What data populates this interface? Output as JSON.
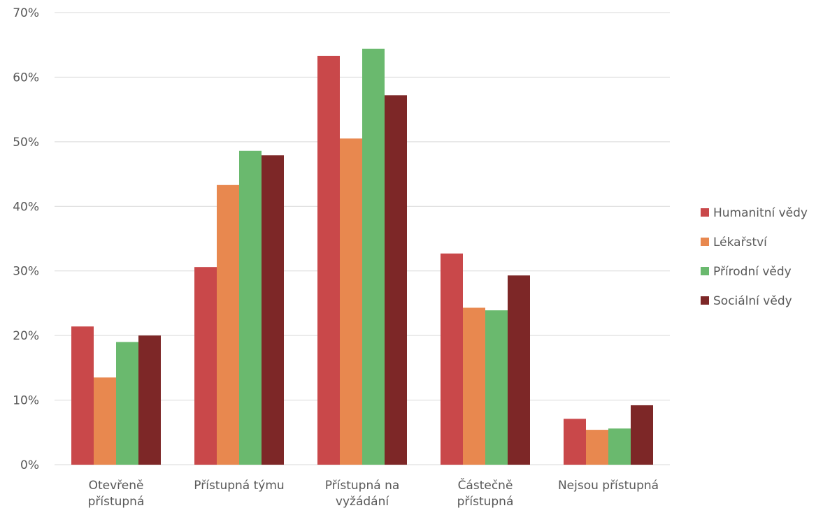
{
  "chart_data": {
    "type": "bar",
    "title": "",
    "xlabel": "",
    "ylabel": "",
    "ylim": [
      0,
      70
    ],
    "yticks": [
      0,
      10,
      20,
      30,
      40,
      50,
      60,
      70
    ],
    "ytick_format": "%",
    "grid": true,
    "legend_position": "right",
    "categories": [
      [
        "Otevřeně",
        "přístupná"
      ],
      [
        "Přístupná týmu"
      ],
      [
        "Přístupná na",
        "vyžádání"
      ],
      [
        "Částečně",
        "přístupná"
      ],
      [
        "Nejsou přístupná"
      ]
    ],
    "series": [
      {
        "name": "Humanitní vědy",
        "color": "#c9484a",
        "values": [
          21.4,
          30.6,
          63.3,
          32.7,
          7.1
        ]
      },
      {
        "name": "Lékařství",
        "color": "#e8884f",
        "values": [
          13.5,
          43.3,
          50.5,
          24.3,
          5.4
        ]
      },
      {
        "name": "Přírodní vědy",
        "color": "#6ab96e",
        "values": [
          19.0,
          48.6,
          64.4,
          23.9,
          5.6
        ]
      },
      {
        "name": "Sociální vědy",
        "color": "#7d2727",
        "values": [
          20.0,
          47.9,
          57.2,
          29.3,
          9.2
        ]
      }
    ]
  }
}
